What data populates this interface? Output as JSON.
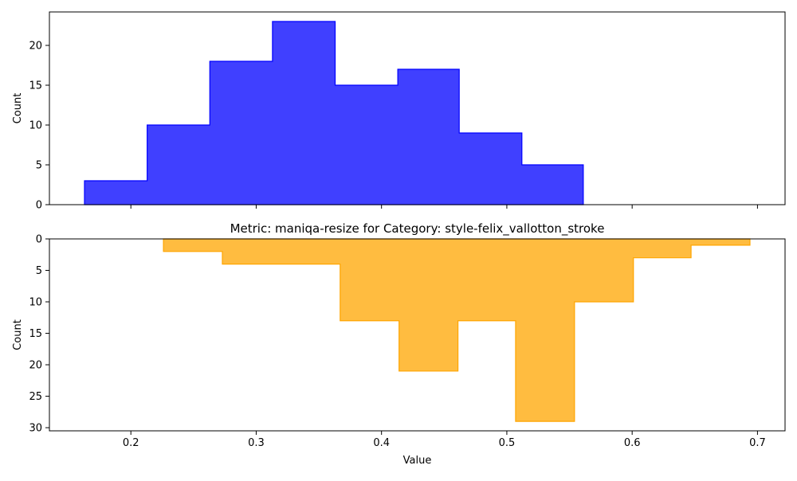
{
  "chart_data": [
    {
      "type": "histogram",
      "title": "",
      "xlabel": "",
      "ylabel": "Count",
      "orientation": "up",
      "color": "#0000ff",
      "xlim": [
        0.135,
        0.722
      ],
      "ylim": [
        0,
        24.2
      ],
      "bin_edges": [
        0.163,
        0.213,
        0.263,
        0.313,
        0.363,
        0.413,
        0.462,
        0.512,
        0.561
      ],
      "counts": [
        3,
        10,
        18,
        23,
        15,
        17,
        9,
        5
      ],
      "xticks": [
        0.2,
        0.3,
        0.4,
        0.5,
        0.6,
        0.7
      ],
      "show_xtick_labels": false,
      "yticks": [
        0,
        5,
        10,
        15,
        20
      ],
      "grid": false
    },
    {
      "type": "histogram",
      "title": "Metric: maniqa-resize for Category: style-felix_vallotton_stroke",
      "xlabel": "Value",
      "ylabel": "Count",
      "orientation": "down",
      "color": "#ffa500",
      "xlim": [
        0.135,
        0.722
      ],
      "ylim": [
        0,
        30.5
      ],
      "bin_edges": [
        0.226,
        0.273,
        0.367,
        0.414,
        0.461,
        0.507,
        0.554,
        0.601,
        0.647,
        0.694
      ],
      "counts": [
        2,
        4,
        13,
        21,
        13,
        29,
        10,
        3,
        1
      ],
      "xticks": [
        0.2,
        0.3,
        0.4,
        0.5,
        0.6,
        0.7
      ],
      "show_xtick_labels": true,
      "yticks": [
        0,
        5,
        10,
        15,
        20,
        25,
        30
      ],
      "grid": false
    }
  ]
}
